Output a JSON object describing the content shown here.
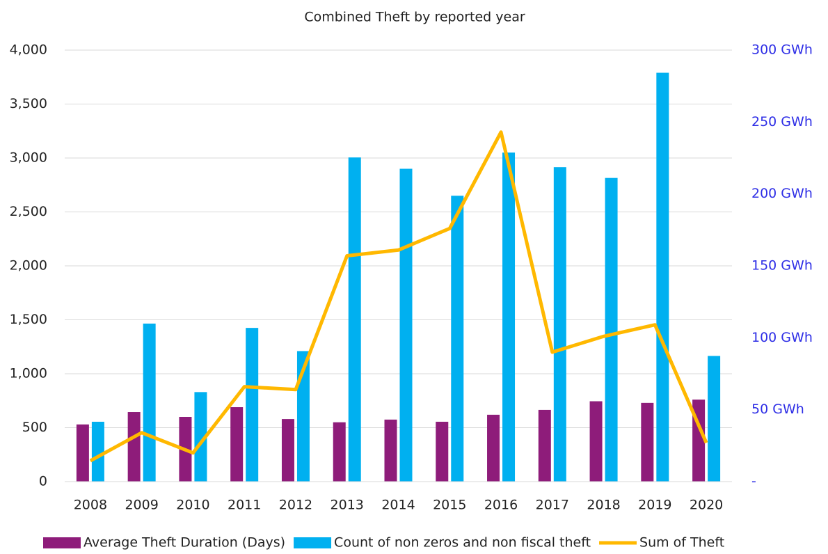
{
  "chart_data": {
    "type": "bar",
    "title": "Combined Theft by reported year",
    "categories": [
      "2008",
      "2009",
      "2010",
      "2011",
      "2012",
      "2013",
      "2014",
      "2015",
      "2016",
      "2017",
      "2018",
      "2019",
      "2020"
    ],
    "series": [
      {
        "name": "Average Theft Duration (Days)",
        "color": "#8e1c7a",
        "type": "bar",
        "values": [
          530,
          645,
          600,
          690,
          580,
          550,
          575,
          555,
          620,
          665,
          745,
          730,
          760
        ]
      },
      {
        "name": "Count of non zeros and non fiscal theft",
        "color": "#00b0f0",
        "type": "bar",
        "values": [
          555,
          1465,
          830,
          1425,
          1210,
          3005,
          2900,
          2650,
          3050,
          2915,
          2815,
          3790,
          1165
        ]
      },
      {
        "name": "Sum of Theft",
        "color": "#ffb800",
        "type": "line",
        "axis": "y2",
        "values": [
          14.5,
          34,
          20,
          66,
          64,
          157,
          161,
          176,
          243,
          90,
          101,
          109,
          27
        ]
      }
    ],
    "ylim": [
      0,
      4000
    ],
    "yticks": [
      0,
      {
        "value": 500,
        "label": "500"
      },
      {
        "value": 1000,
        "label": "1,000"
      },
      {
        "value": 1500,
        "label": "1,500"
      },
      {
        "value": 2000,
        "label": "2,000"
      },
      {
        "value": 2500,
        "label": "2,500"
      },
      {
        "value": 3000,
        "label": "3,000"
      },
      {
        "value": 3500,
        "label": "3,500"
      },
      {
        "value": 4000,
        "label": "4,000"
      }
    ],
    "y2lim": [
      0,
      300
    ],
    "y2ticks": [
      {
        "value": 0,
        "label": "-"
      },
      {
        "value": 50,
        "label": "50 GWh"
      },
      {
        "value": 100,
        "label": "100 GWh"
      },
      {
        "value": 150,
        "label": "150 GWh"
      },
      {
        "value": 200,
        "label": "200 GWh"
      },
      {
        "value": 250,
        "label": "250 GWh"
      },
      {
        "value": 300,
        "label": "300 GWh"
      }
    ],
    "grid": true,
    "legend": "bottom"
  }
}
